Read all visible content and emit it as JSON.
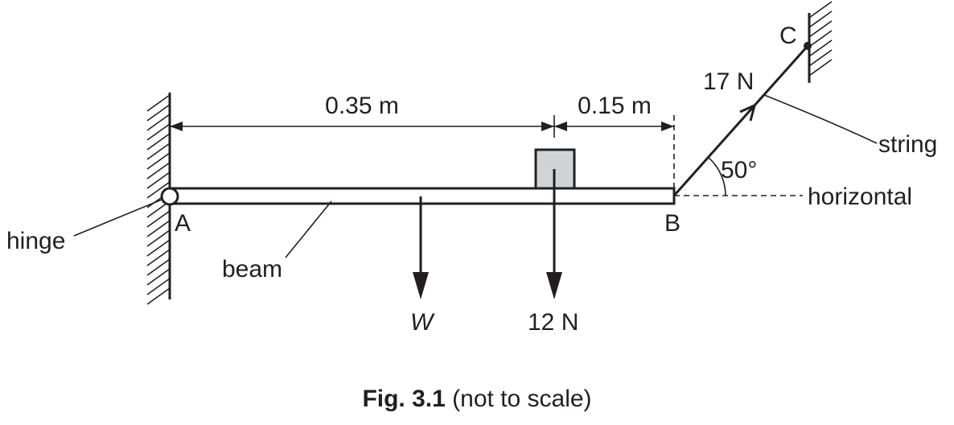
{
  "labels": {
    "dim_left": "0.35 m",
    "dim_right": "0.15 m",
    "point_a": "A",
    "point_b": "B",
    "point_c": "C",
    "tension": "17 N",
    "angle": "50°",
    "string": "string",
    "horizontal": "horizontal",
    "hinge": "hinge",
    "beam": "beam",
    "weight": "W",
    "load": "12 N"
  },
  "caption": {
    "number": "Fig. 3.1",
    "note": "(not to scale)"
  },
  "colors": {
    "ink": "#231f20",
    "block_fill": "#d1d3d4"
  }
}
